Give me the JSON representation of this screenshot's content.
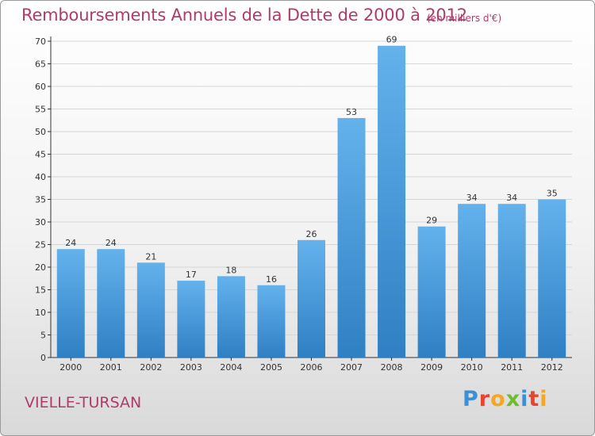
{
  "header": {
    "title": "Remboursements Annuels de la Dette de 2000 à 2012",
    "unit": "(en milliers d'€)"
  },
  "footer": {
    "commune": "VIELLE-TURSAN",
    "logo_letters": [
      "P",
      "r",
      "o",
      "x",
      "i",
      "t",
      "i"
    ],
    "logo_colors": [
      "#3d8fd6",
      "#e9422e",
      "#f5a623",
      "#6cbf2a",
      "#3d8fd6",
      "#e9422e",
      "#f5a623"
    ]
  },
  "colors": {
    "bar_light": "#64b2ec",
    "bar_dark": "#2f7fc4",
    "grid": "#d6d6d6",
    "axis": "#333333"
  },
  "chart_data": {
    "type": "bar",
    "title": "Remboursements Annuels de la Dette de 2000 à 2012",
    "categories": [
      "2000",
      "2001",
      "2002",
      "2003",
      "2004",
      "2005",
      "2006",
      "2007",
      "2008",
      "2009",
      "2010",
      "2011",
      "2012"
    ],
    "values": [
      24,
      24,
      21,
      17,
      18,
      16,
      26,
      53,
      69,
      29,
      34,
      34,
      35
    ],
    "ylim": [
      0,
      70
    ],
    "yticks": [
      0,
      5,
      10,
      15,
      20,
      25,
      30,
      35,
      40,
      45,
      50,
      55,
      60,
      65,
      70
    ],
    "grid": true
  }
}
